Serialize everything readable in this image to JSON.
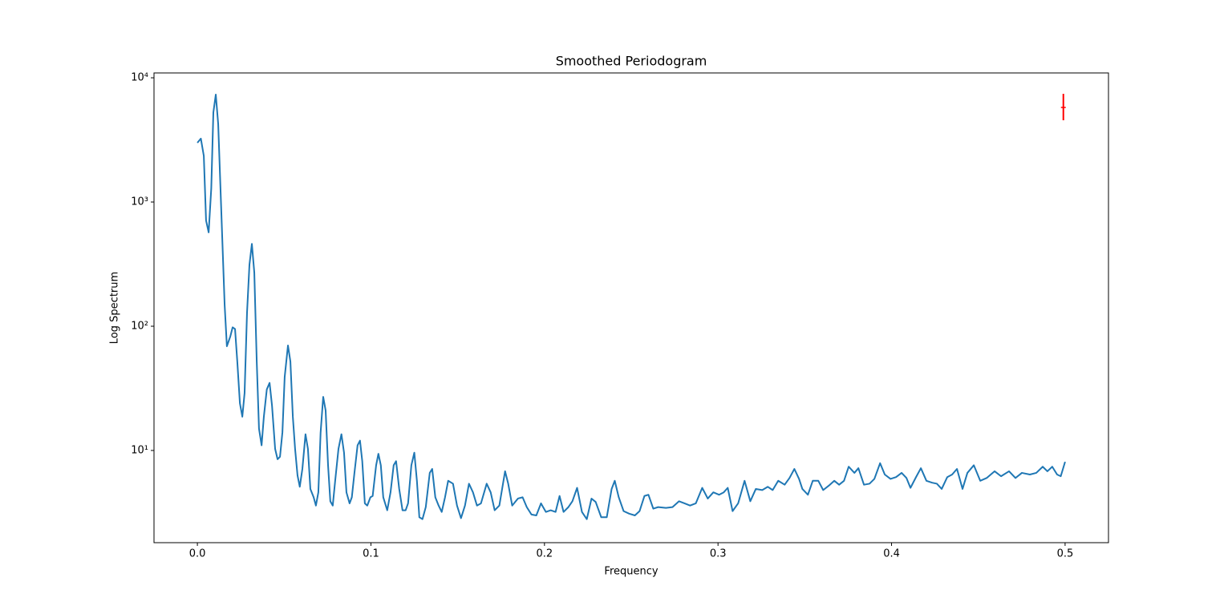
{
  "chart_data": {
    "type": "line",
    "title": "Smoothed Periodogram",
    "xlabel": "Frequency",
    "ylabel": "Log Spectrum",
    "yscale": "log",
    "xlim": [
      -0.025,
      0.525
    ],
    "ylim": [
      1.81,
      10940
    ],
    "xticks": [
      {
        "value": 0,
        "label": "0.0"
      },
      0.1,
      0.2,
      0.3,
      0.4,
      0.5
    ],
    "yticks": [
      {
        "value": 10,
        "label": "10¹"
      },
      {
        "value": 100,
        "label": "10²"
      },
      {
        "value": 1000,
        "label": "10³"
      },
      {
        "value": 10000,
        "label": "10⁴"
      }
    ],
    "series": [
      {
        "color": "#1f77b4",
        "x": [
          0,
          0.002,
          0.0037,
          0.005,
          0.0065,
          0.008,
          0.0092,
          0.0106,
          0.012,
          0.0134,
          0.0143,
          0.0157,
          0.017,
          0.019,
          0.0203,
          0.0217,
          0.023,
          0.0245,
          0.0259,
          0.0272,
          0.0286,
          0.03,
          0.0314,
          0.0328,
          0.0342,
          0.0355,
          0.037,
          0.0383,
          0.04,
          0.0416,
          0.043,
          0.0448,
          0.0462,
          0.0476,
          0.049,
          0.0503,
          0.0522,
          0.0536,
          0.055,
          0.0563,
          0.0577,
          0.059,
          0.0605,
          0.0623,
          0.0637,
          0.0651,
          0.067,
          0.0683,
          0.0697,
          0.071,
          0.0725,
          0.0739,
          0.0753,
          0.0766,
          0.078,
          0.0794,
          0.0813,
          0.083,
          0.0845,
          0.0859,
          0.0877,
          0.089,
          0.0905,
          0.0923,
          0.0937,
          0.095,
          0.0965,
          0.0979,
          0.0997,
          0.101,
          0.103,
          0.1043,
          0.1057,
          0.1071,
          0.1094,
          0.1113,
          0.1131,
          0.1145,
          0.1163,
          0.1182,
          0.12,
          0.1214,
          0.1233,
          0.125,
          0.1265,
          0.1279,
          0.1297,
          0.1316,
          0.1339,
          0.1353,
          0.1371,
          0.139,
          0.1408,
          0.1427,
          0.1445,
          0.1473,
          0.1496,
          0.1519,
          0.1542,
          0.1565,
          0.1588,
          0.1611,
          0.1634,
          0.1667,
          0.169,
          0.1713,
          0.174,
          0.1773,
          0.1791,
          0.1814,
          0.1847,
          0.1874,
          0.1898,
          0.1925,
          0.1953,
          0.198,
          0.2008,
          0.2036,
          0.2064,
          0.2087,
          0.211,
          0.2138,
          0.2161,
          0.2188,
          0.2216,
          0.2244,
          0.2271,
          0.2295,
          0.2327,
          0.2359,
          0.2387,
          0.2405,
          0.2428,
          0.2456,
          0.2488,
          0.2521,
          0.2548,
          0.2576,
          0.2599,
          0.2627,
          0.2655,
          0.27,
          0.2738,
          0.2775,
          0.2807,
          0.2839,
          0.2872,
          0.2909,
          0.2941,
          0.2973,
          0.3006,
          0.3033,
          0.3056,
          0.3084,
          0.3116,
          0.3153,
          0.3186,
          0.3218,
          0.3255,
          0.3287,
          0.3315,
          0.3347,
          0.3384,
          0.3412,
          0.344,
          0.3467,
          0.3486,
          0.3518,
          0.3546,
          0.3578,
          0.3606,
          0.3638,
          0.367,
          0.3698,
          0.3726,
          0.3753,
          0.3786,
          0.3809,
          0.3841,
          0.3873,
          0.3901,
          0.3934,
          0.3961,
          0.3994,
          0.4026,
          0.4058,
          0.4086,
          0.4109,
          0.4141,
          0.4169,
          0.4201,
          0.4234,
          0.4261,
          0.4289,
          0.4321,
          0.4349,
          0.4377,
          0.4409,
          0.4437,
          0.4474,
          0.4511,
          0.4548,
          0.4594,
          0.4631,
          0.4677,
          0.4714,
          0.4751,
          0.4797,
          0.4834,
          0.4871,
          0.4898,
          0.4926,
          0.4954,
          0.4975,
          0.5
        ],
        "values": [
          3000,
          3240,
          2350,
          710,
          570,
          1290,
          5250,
          7330,
          4230,
          1190,
          526,
          149,
          69,
          83,
          98,
          95,
          52,
          24,
          18.7,
          29,
          128,
          313,
          460,
          270,
          52,
          15,
          11,
          18.7,
          31,
          35,
          23,
          10.3,
          8.5,
          8.9,
          14,
          39,
          70,
          52,
          18.7,
          10.3,
          6.3,
          5.1,
          7.1,
          13.5,
          10.3,
          4.9,
          4.2,
          3.6,
          4.6,
          13.9,
          27,
          21,
          7.6,
          3.9,
          3.6,
          5.7,
          10.3,
          13.5,
          9.6,
          4.6,
          3.75,
          4.2,
          6.6,
          11,
          12,
          8.2,
          3.75,
          3.6,
          4.2,
          4.3,
          7.6,
          9.4,
          7.6,
          4.2,
          3.3,
          4.6,
          7.6,
          8.2,
          4.9,
          3.3,
          3.3,
          3.75,
          7.6,
          9.6,
          5.7,
          2.9,
          2.8,
          3.5,
          6.6,
          7.1,
          4.2,
          3.6,
          3.2,
          4.2,
          5.7,
          5.4,
          3.6,
          2.85,
          3.6,
          5.4,
          4.6,
          3.6,
          3.75,
          5.4,
          4.6,
          3.3,
          3.6,
          6.8,
          5.4,
          3.6,
          4.1,
          4.2,
          3.5,
          3.05,
          3.0,
          3.75,
          3.2,
          3.3,
          3.2,
          4.3,
          3.2,
          3.5,
          3.9,
          5.0,
          3.2,
          2.8,
          4.1,
          3.85,
          2.9,
          2.9,
          4.9,
          5.7,
          4.2,
          3.25,
          3.1,
          3.0,
          3.25,
          4.3,
          4.4,
          3.4,
          3.5,
          3.45,
          3.5,
          3.9,
          3.75,
          3.6,
          3.75,
          5.0,
          4.1,
          4.6,
          4.4,
          4.6,
          5.0,
          3.25,
          3.75,
          5.7,
          3.9,
          4.9,
          4.8,
          5.1,
          4.8,
          5.7,
          5.3,
          6.0,
          7.1,
          5.9,
          4.9,
          4.4,
          5.7,
          5.7,
          4.8,
          5.2,
          5.7,
          5.3,
          5.7,
          7.4,
          6.6,
          7.2,
          5.3,
          5.4,
          5.9,
          7.9,
          6.4,
          5.9,
          6.1,
          6.6,
          6.0,
          5.0,
          6.1,
          7.2,
          5.7,
          5.5,
          5.4,
          4.9,
          6.1,
          6.4,
          7.1,
          4.9,
          6.6,
          7.6,
          5.7,
          6.0,
          6.8,
          6.2,
          6.8,
          6.0,
          6.6,
          6.4,
          6.6,
          7.4,
          6.8,
          7.4,
          6.4,
          6.2,
          8.1
        ]
      }
    ],
    "errorbar": {
      "x": 0.499,
      "y": 5770,
      "lower": 4550,
      "upper": 7430,
      "color": "#ff0000"
    }
  }
}
